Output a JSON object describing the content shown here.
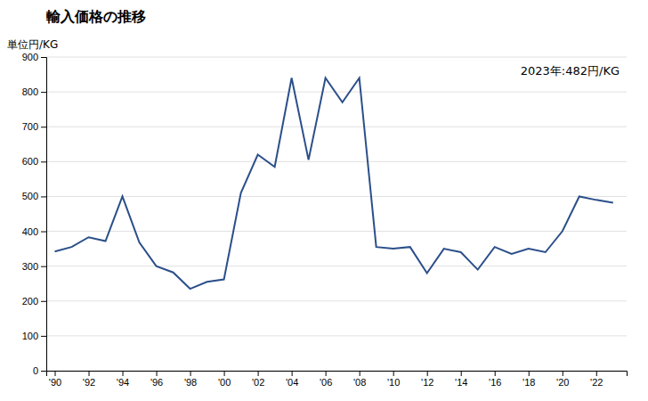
{
  "chart_data": {
    "type": "line",
    "title": "輸入価格の推移",
    "ylabel": "単位円/KG",
    "annotation": "2023年:482円/KG",
    "x": [
      1990,
      1991,
      1992,
      1993,
      1994,
      1995,
      1996,
      1997,
      1998,
      1999,
      2000,
      2001,
      2002,
      2003,
      2004,
      2005,
      2006,
      2007,
      2008,
      2009,
      2010,
      2011,
      2012,
      2013,
      2014,
      2015,
      2016,
      2017,
      2018,
      2019,
      2020,
      2021,
      2022,
      2023
    ],
    "values": [
      342,
      355,
      383,
      372,
      500,
      368,
      300,
      282,
      235,
      255,
      262,
      510,
      620,
      585,
      840,
      605,
      840,
      770,
      840,
      355,
      350,
      355,
      280,
      350,
      340,
      290,
      355,
      335,
      350,
      340,
      400,
      500,
      490,
      482
    ],
    "color": "#2b4f8a",
    "xlim": [
      1989.5,
      2023.8
    ],
    "xticks": [
      {
        "value": 1990,
        "label": "'90"
      },
      {
        "value": 1992,
        "label": "'92"
      },
      {
        "value": 1994,
        "label": "'94"
      },
      {
        "value": 1996,
        "label": "'96"
      },
      {
        "value": 1998,
        "label": "'98"
      },
      {
        "value": 2000,
        "label": "'00"
      },
      {
        "value": 2002,
        "label": "'02"
      },
      {
        "value": 2004,
        "label": "'04"
      },
      {
        "value": 2006,
        "label": "'06"
      },
      {
        "value": 2008,
        "label": "'08"
      },
      {
        "value": 2010,
        "label": "'10"
      },
      {
        "value": 2012,
        "label": "'12"
      },
      {
        "value": 2014,
        "label": "'14"
      },
      {
        "value": 2016,
        "label": "'16"
      },
      {
        "value": 2018,
        "label": "'18"
      },
      {
        "value": 2020,
        "label": "'20"
      },
      {
        "value": 2022,
        "label": "'22"
      }
    ],
    "ylim": [
      0,
      900
    ],
    "yticks": [
      0,
      100,
      200,
      300,
      400,
      500,
      600,
      700,
      800,
      900
    ],
    "grid": true
  }
}
